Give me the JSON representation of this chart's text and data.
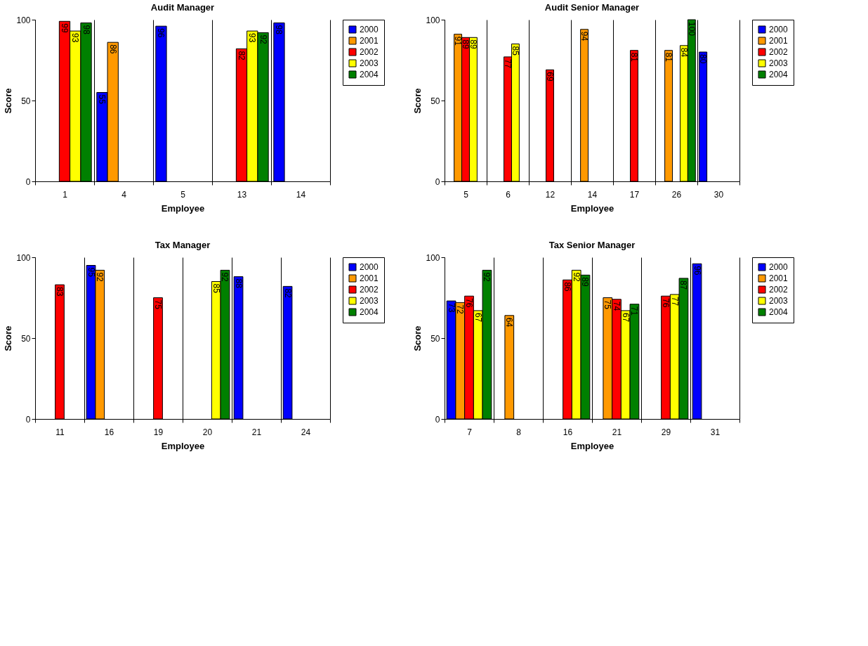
{
  "chart_data": [
    {
      "type": "bar",
      "title": "Audit Manager",
      "xlabel": "Employee",
      "ylabel": "Score",
      "categories": [
        "1",
        "4",
        "5",
        "13",
        "14"
      ],
      "ylim": [
        0,
        100
      ],
      "yticks": [
        0,
        50,
        100
      ],
      "grid": "x",
      "legend": "right",
      "data_labels": true,
      "series": [
        {
          "name": "2000",
          "color": "#0000ff",
          "values": [
            null,
            55,
            96,
            null,
            98
          ]
        },
        {
          "name": "2001",
          "color": "#ff9900",
          "values": [
            null,
            86,
            null,
            null,
            null
          ]
        },
        {
          "name": "2002",
          "color": "#ff0000",
          "values": [
            99,
            null,
            null,
            82,
            null
          ]
        },
        {
          "name": "2003",
          "color": "#ffff00",
          "values": [
            93,
            null,
            null,
            93,
            null
          ]
        },
        {
          "name": "2004",
          "color": "#008000",
          "values": [
            98,
            null,
            null,
            92,
            null
          ]
        }
      ]
    },
    {
      "type": "bar",
      "title": "Audit Senior Manager",
      "xlabel": "Employee",
      "ylabel": "Score",
      "categories": [
        "5",
        "6",
        "12",
        "14",
        "17",
        "26",
        "30"
      ],
      "ylim": [
        0,
        100
      ],
      "yticks": [
        0,
        50,
        100
      ],
      "grid": "x",
      "legend": "right",
      "data_labels": true,
      "series": [
        {
          "name": "2000",
          "color": "#0000ff",
          "values": [
            null,
            null,
            null,
            null,
            null,
            null,
            80
          ]
        },
        {
          "name": "2001",
          "color": "#ff9900",
          "values": [
            91,
            null,
            null,
            94,
            null,
            81,
            null
          ]
        },
        {
          "name": "2002",
          "color": "#ff0000",
          "values": [
            89,
            77,
            69,
            null,
            81,
            null,
            null
          ]
        },
        {
          "name": "2003",
          "color": "#ffff00",
          "values": [
            89,
            85,
            null,
            null,
            null,
            84,
            null
          ]
        },
        {
          "name": "2004",
          "color": "#008000",
          "values": [
            null,
            null,
            null,
            null,
            null,
            100,
            null
          ]
        }
      ]
    },
    {
      "type": "bar",
      "title": "Tax Manager",
      "xlabel": "Employee",
      "ylabel": "Score",
      "categories": [
        "11",
        "16",
        "19",
        "20",
        "21",
        "24"
      ],
      "ylim": [
        0,
        100
      ],
      "yticks": [
        0,
        50,
        100
      ],
      "grid": "x",
      "legend": "right",
      "data_labels": true,
      "series": [
        {
          "name": "2000",
          "color": "#0000ff",
          "values": [
            null,
            95,
            null,
            null,
            88,
            82
          ]
        },
        {
          "name": "2001",
          "color": "#ff9900",
          "values": [
            null,
            92,
            null,
            null,
            null,
            null
          ]
        },
        {
          "name": "2002",
          "color": "#ff0000",
          "values": [
            83,
            null,
            75,
            null,
            null,
            null
          ]
        },
        {
          "name": "2003",
          "color": "#ffff00",
          "values": [
            null,
            null,
            null,
            85,
            null,
            null
          ]
        },
        {
          "name": "2004",
          "color": "#008000",
          "values": [
            null,
            null,
            null,
            92,
            null,
            null
          ]
        }
      ]
    },
    {
      "type": "bar",
      "title": "Tax Senior Manager",
      "xlabel": "Employee",
      "ylabel": "Score",
      "categories": [
        "7",
        "8",
        "16",
        "21",
        "29",
        "31"
      ],
      "ylim": [
        0,
        100
      ],
      "yticks": [
        0,
        50,
        100
      ],
      "grid": "x",
      "legend": "right",
      "data_labels": true,
      "series": [
        {
          "name": "2000",
          "color": "#0000ff",
          "values": [
            73,
            null,
            null,
            null,
            null,
            96
          ]
        },
        {
          "name": "2001",
          "color": "#ff9900",
          "values": [
            72,
            64,
            null,
            75,
            null,
            null
          ]
        },
        {
          "name": "2002",
          "color": "#ff0000",
          "values": [
            76,
            null,
            86,
            74,
            76,
            null
          ]
        },
        {
          "name": "2003",
          "color": "#ffff00",
          "values": [
            67,
            null,
            92,
            67,
            77,
            null
          ]
        },
        {
          "name": "2004",
          "color": "#008000",
          "values": [
            92,
            null,
            89,
            71,
            87,
            null
          ]
        }
      ]
    }
  ]
}
